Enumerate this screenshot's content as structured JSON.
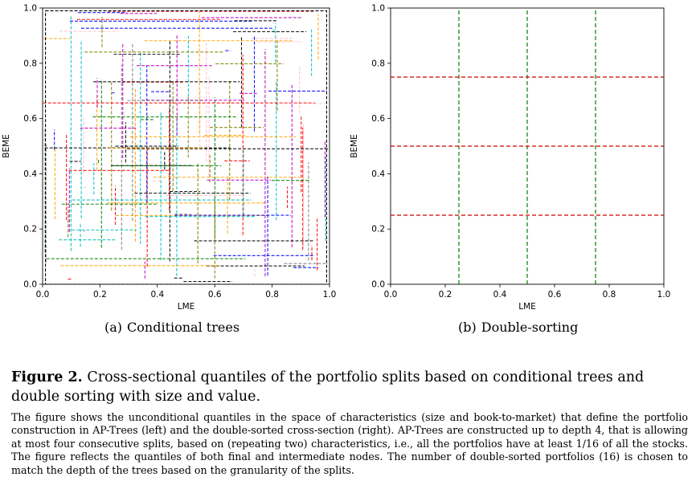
{
  "panel_a": {
    "label": "(a)",
    "title": "Conditional trees"
  },
  "panel_b": {
    "label": "(b)",
    "title": "Double-sorting"
  },
  "caption": {
    "figure_label": "Figure 2.",
    "title": "Cross-sectional quantiles of the portfolio splits based on conditional trees and double sorting with size and value.",
    "body": "The figure shows the unconditional quantiles in the space of characteristics (size and book-to-market) that define the portfolio construction in AP-Trees (left) and the double-sorted cross-section (right). AP-Trees are constructed up to depth 4, that is allowing at most four consecutive splits, based on (repeating two) characteristics, i.e., all the portfolios have at least 1/16 of all the stocks. The figure reflects the quantiles of both final and intermediate nodes. The number of double-sorted portfolios (16) is chosen to match the depth of the trees based on the granularity of the splits."
  },
  "chart_data": [
    {
      "type": "line",
      "xlabel": "LME",
      "ylabel": "BEME",
      "xlim": [
        0,
        1
      ],
      "ylim": [
        0,
        1
      ],
      "xticks": [
        "0.0",
        "0.2",
        "0.4",
        "0.6",
        "0.8",
        "1.0"
      ],
      "yticks": [
        "0.0",
        "0.2",
        "0.4",
        "0.6",
        "0.8",
        "1.0"
      ],
      "grid": false,
      "line_style": "dashed",
      "colors": [
        "#000000",
        "#0000ff",
        "#008000",
        "#ff0000",
        "#00bfbf",
        "#bf00bf",
        "#ffa500",
        "#ffc0cb",
        "#808080",
        "#7f7f00"
      ],
      "vertical_splits": [
        0.01,
        0.05,
        0.09,
        0.14,
        0.18,
        0.2,
        0.25,
        0.28,
        0.32,
        0.35,
        0.37,
        0.42,
        0.45,
        0.47,
        0.5,
        0.54,
        0.58,
        0.6,
        0.65,
        0.7,
        0.74,
        0.78,
        0.82,
        0.86,
        0.9,
        0.93,
        0.96,
        0.99
      ],
      "horizontal_splits": [
        0.02,
        0.07,
        0.1,
        0.16,
        0.2,
        0.25,
        0.3,
        0.33,
        0.38,
        0.42,
        0.44,
        0.5,
        0.53,
        0.56,
        0.6,
        0.66,
        0.7,
        0.74,
        0.8,
        0.84,
        0.88,
        0.92,
        0.96,
        0.99
      ]
    },
    {
      "type": "line",
      "xlabel": "LME",
      "ylabel": "BEME",
      "xlim": [
        0,
        1
      ],
      "ylim": [
        0,
        1
      ],
      "xticks": [
        "0.0",
        "0.2",
        "0.4",
        "0.6",
        "0.8",
        "1.0"
      ],
      "yticks": [
        "0.0",
        "0.2",
        "0.4",
        "0.6",
        "0.8",
        "1.0"
      ],
      "grid": false,
      "series": [
        {
          "orientation": "vertical",
          "color": "#008000",
          "values": [
            0.25,
            0.5,
            0.75
          ],
          "from": 0.0,
          "to": 1.0
        },
        {
          "orientation": "horizontal",
          "color": "#cc0000",
          "values": [
            0.25,
            0.5,
            0.75
          ],
          "from": 0.0,
          "to": 1.0
        }
      ]
    }
  ]
}
